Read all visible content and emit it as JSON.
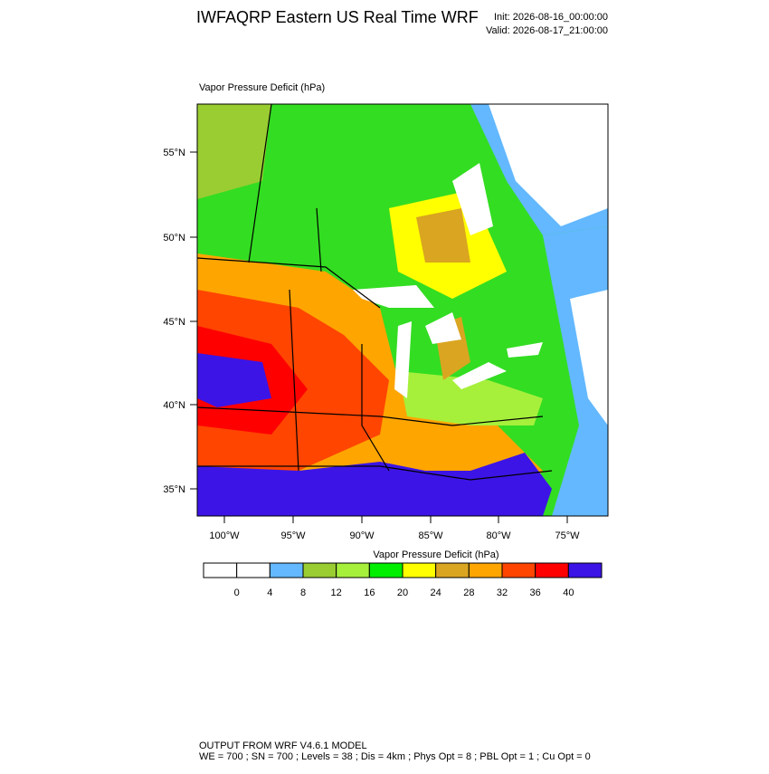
{
  "header": {
    "title": "IWFAQRP Eastern US Real Time WRF",
    "init": "Init: 2026-08-16_00:00:00",
    "valid": "Valid: 2026-08-17_21:00:00"
  },
  "map": {
    "title": "Vapor Pressure Deficit   (hPa)",
    "lat_labels": [
      "55°N",
      "50°N",
      "45°N",
      "40°N",
      "35°N"
    ],
    "lon_labels": [
      "100°W",
      "95°W",
      "90°W",
      "85°W",
      "80°W",
      "75°W"
    ]
  },
  "colorbar": {
    "title": "Vapor Pressure Deficit  (hPa)",
    "colors": [
      "#ffffff",
      "#ffffff",
      "#63b8ff",
      "#9acd32",
      "#a6f03c",
      "#00ee00",
      "#ffff00",
      "#daa520",
      "#ffa500",
      "#ff4500",
      "#ff0000",
      "#3c14e6"
    ],
    "labels": [
      0,
      4,
      8,
      12,
      16,
      20,
      24,
      28,
      32,
      36,
      40
    ]
  },
  "footer": {
    "line1": "OUTPUT FROM WRF V4.6.1 MODEL",
    "line2": "WE = 700 ; SN = 700 ; Levels = 38 ; Dis = 4km ; Phys Opt = 8 ; PBL Opt = 1 ; Cu Opt = 0"
  }
}
